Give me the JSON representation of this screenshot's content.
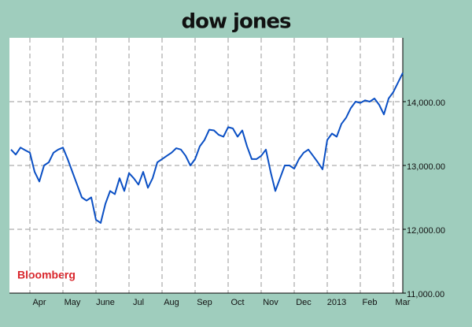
{
  "chart_data": {
    "type": "line",
    "title": "dow jones",
    "source": "Bloomberg",
    "x_tick_labels": [
      "Apr",
      "May",
      "June",
      "Jul",
      "Aug",
      "Sep",
      "Oct",
      "Nov",
      "Dec",
      "2013",
      "Feb",
      "Mar"
    ],
    "series": [
      {
        "name": "Dow Jones",
        "color": "#0a4fc4",
        "values": [
          13250,
          13170,
          13280,
          13240,
          13200,
          12900,
          12750,
          13000,
          13050,
          13200,
          13250,
          13280,
          13100,
          12900,
          12700,
          12500,
          12450,
          12500,
          12150,
          12100,
          12400,
          12600,
          12550,
          12800,
          12600,
          12880,
          12800,
          12700,
          12900,
          12650,
          12800,
          13050,
          13100,
          13150,
          13200,
          13270,
          13250,
          13150,
          13000,
          13100,
          13300,
          13400,
          13560,
          13550,
          13480,
          13450,
          13600,
          13580,
          13450,
          13550,
          13300,
          13100,
          13100,
          13150,
          13250,
          12900,
          12600,
          12800,
          13000,
          13000,
          12950,
          13100,
          13200,
          13250,
          13150,
          13050,
          12940,
          13400,
          13500,
          13450,
          13650,
          13750,
          13900,
          14000,
          13980,
          14020,
          14000,
          14050,
          13950,
          13800,
          14050,
          14150,
          14300,
          14450
        ]
      }
    ],
    "ylim": [
      11000,
      15000
    ],
    "yticks": [
      {
        "value": 11000,
        "label": "11,000.00"
      },
      {
        "value": 12000,
        "label": "12,000.00"
      },
      {
        "value": 13000,
        "label": "13,000.00"
      },
      {
        "value": 14000,
        "label": "14,000.00"
      }
    ],
    "grid": true
  }
}
